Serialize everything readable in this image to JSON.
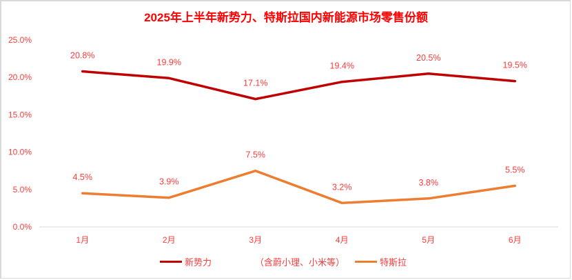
{
  "chart_data": {
    "type": "line",
    "title": "2025年上半年新势力、特斯拉国内新能源市场零售份额",
    "xlabel": "",
    "ylabel": "",
    "categories": [
      "1月",
      "2月",
      "3月",
      "4月",
      "5月",
      "6月"
    ],
    "ylim": [
      0,
      25
    ],
    "yticks": [
      "0.0%",
      "5.0%",
      "10.0%",
      "15.0%",
      "20.0%",
      "25.0%"
    ],
    "grid": false,
    "legend_position": "bottom",
    "series": [
      {
        "name": "新势力　　（含蔚小理、小米等）",
        "color": "#c00000",
        "values": [
          20.8,
          19.9,
          17.1,
          19.4,
          20.5,
          19.5
        ],
        "labels": [
          "20.8%",
          "19.9%",
          "17.1%",
          "19.4%",
          "20.5%",
          "19.5%"
        ]
      },
      {
        "name": "特斯拉",
        "color": "#ed7d31",
        "values": [
          4.5,
          3.9,
          7.5,
          3.2,
          3.8,
          5.5
        ],
        "labels": [
          "4.5%",
          "3.9%",
          "7.5%",
          "3.2%",
          "3.8%",
          "5.5%"
        ]
      }
    ]
  },
  "legend": {
    "series1_label_a": "新势力",
    "series1_label_b": "（含蔚小理、小米等）",
    "series2_label": "特斯拉"
  },
  "colors": {
    "title": "#ff0000",
    "text": "#ff3b3b",
    "series1": "#c00000",
    "series2": "#ed7d31",
    "axis": "#d9d9d9"
  }
}
